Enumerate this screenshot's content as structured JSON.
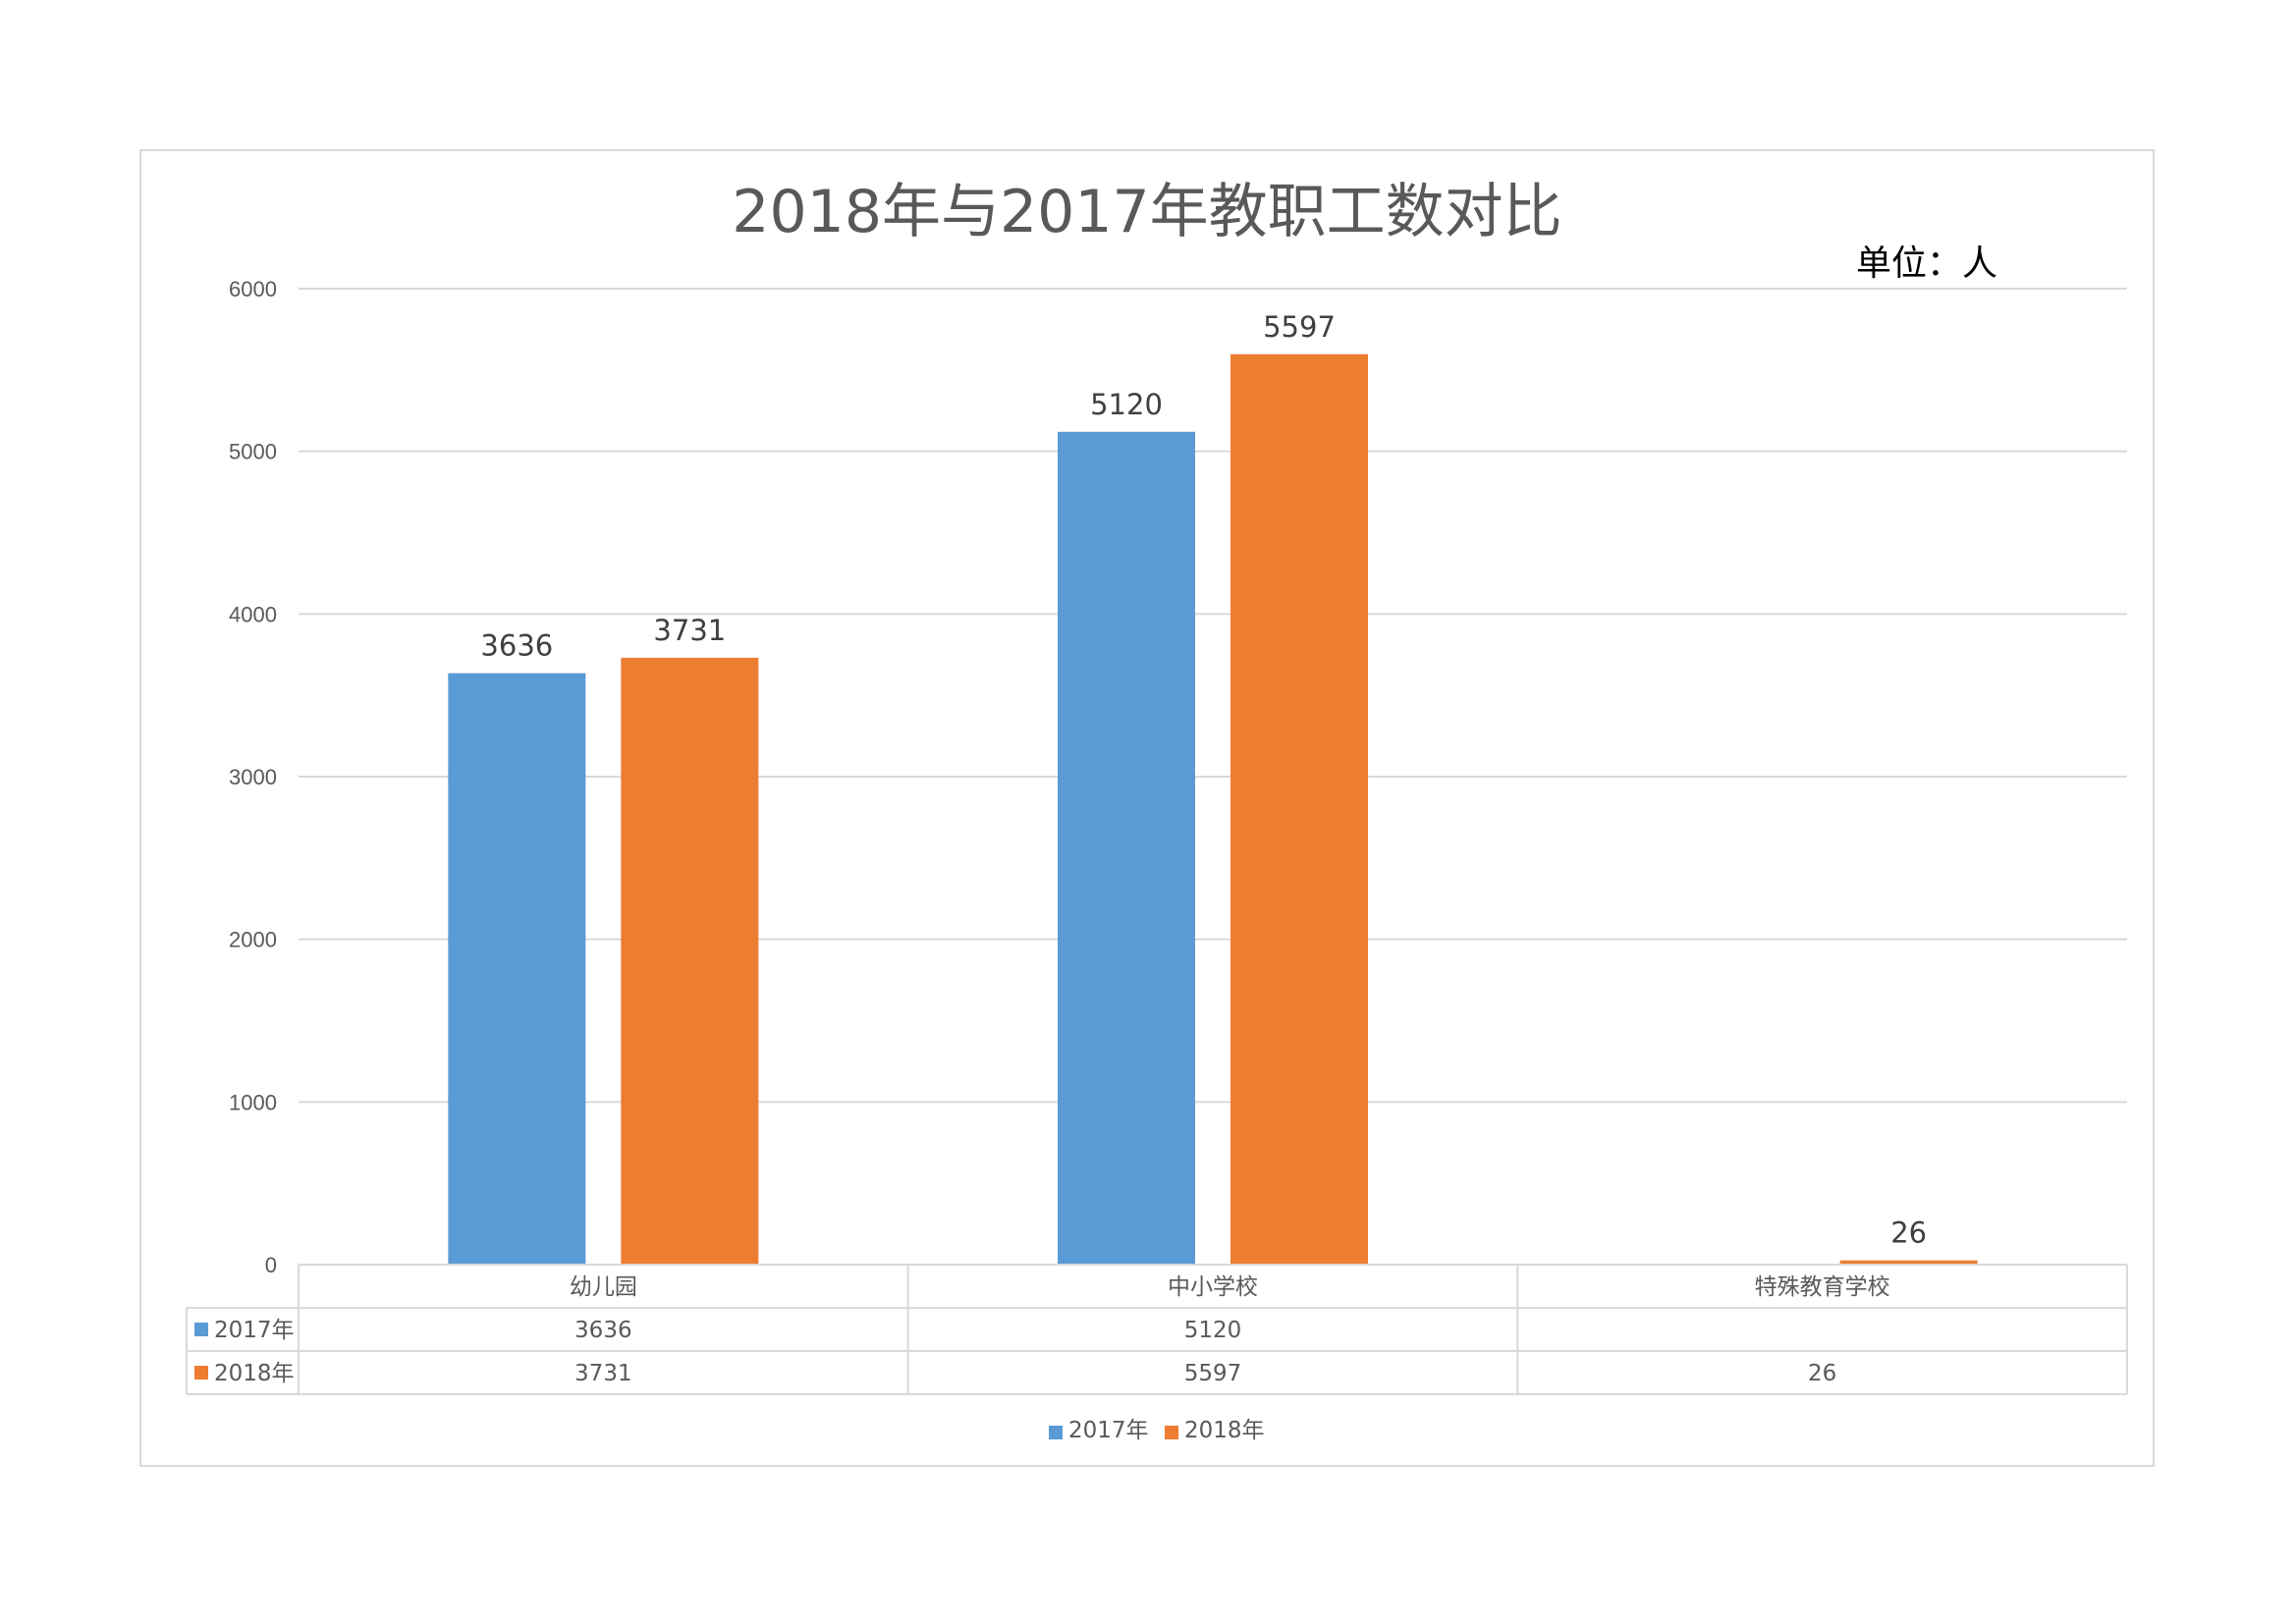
{
  "chart_data": {
    "type": "bar",
    "title": "2018年与2017年教职工数对比",
    "unit_note": "单位：人",
    "categories": [
      "幼儿园",
      "中小学校",
      "特殊教育学校"
    ],
    "series": [
      {
        "name": "2017年",
        "color": "#5b9bd5",
        "values": [
          3636,
          5120,
          null
        ]
      },
      {
        "name": "2018年",
        "color": "#ed7d31",
        "values": [
          3731,
          5597,
          26
        ]
      }
    ],
    "ylim": [
      0,
      6000
    ],
    "yticks": [
      0,
      1000,
      2000,
      3000,
      4000,
      5000,
      6000
    ],
    "xlabel": "",
    "ylabel": "",
    "grid": true,
    "legend_position": "bottom",
    "data_table": true
  }
}
